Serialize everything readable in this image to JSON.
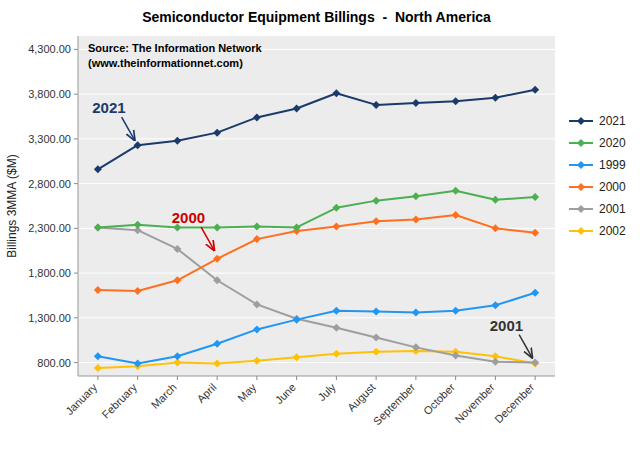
{
  "chart_data": {
    "type": "line",
    "title": "Semiconductor Equipment Billings  -  North America",
    "y_label": "Billings 3MMA ($M)",
    "categories": [
      "January",
      "February",
      "March",
      "April",
      "May",
      "June",
      "July",
      "August",
      "September",
      "October",
      "November",
      "December"
    ],
    "series": [
      {
        "name": "2021",
        "color": "#1a3a6b",
        "marker": "diamond",
        "values": [
          2960,
          3230,
          3280,
          3370,
          3540,
          3640,
          3810,
          3680,
          3700,
          3720,
          3760,
          3850
        ]
      },
      {
        "name": "2020",
        "color": "#4caf50",
        "marker": "diamond",
        "values": [
          2310,
          2340,
          2310,
          2310,
          2320,
          2310,
          2530,
          2610,
          2660,
          2720,
          2620,
          2650
        ]
      },
      {
        "name": "1999",
        "color": "#2196f3",
        "marker": "diamond",
        "values": [
          870,
          790,
          870,
          1010,
          1170,
          1280,
          1380,
          1370,
          1360,
          1380,
          1440,
          1580
        ]
      },
      {
        "name": "2000",
        "color": "#ff6f20",
        "marker": "diamond",
        "values": [
          1610,
          1600,
          1720,
          1960,
          2180,
          2270,
          2320,
          2380,
          2400,
          2450,
          2300,
          2250
        ]
      },
      {
        "name": "2001",
        "color": "#9e9e9e",
        "marker": "diamond",
        "values": [
          2310,
          2280,
          2070,
          1720,
          1450,
          1290,
          1190,
          1080,
          970,
          880,
          810,
          800
        ]
      },
      {
        "name": "2002",
        "color": "#ffc107",
        "marker": "diamond",
        "values": [
          740,
          760,
          800,
          790,
          820,
          860,
          900,
          920,
          930,
          920,
          870,
          790
        ]
      }
    ],
    "ylim": [
      650,
      4450
    ],
    "yticks": [
      {
        "value": 800,
        "label": "800.00"
      },
      {
        "value": 1300,
        "label": "1,300.00"
      },
      {
        "value": 1800,
        "label": "1,800.00"
      },
      {
        "value": 2300,
        "label": "2,300.00"
      },
      {
        "value": 2800,
        "label": "2,800.00"
      },
      {
        "value": 3300,
        "label": "3,300.00"
      },
      {
        "value": 3800,
        "label": "3,800.00"
      },
      {
        "value": 4300,
        "label": "4,300.00"
      }
    ],
    "grid": true,
    "legend": "right",
    "annotations": [
      {
        "text": "Source: The Information Network",
        "color": "#000000"
      },
      {
        "text": "(www.theinformationnet.com)",
        "color": "#000000"
      },
      {
        "text": "2021",
        "x": "February",
        "y": 3230,
        "color": "#1a3a6b"
      },
      {
        "text": "2000",
        "x": "April",
        "y": 2000,
        "color": "#cc0000"
      },
      {
        "text": "2001",
        "x": "December",
        "y": 800,
        "color": "#333333"
      }
    ]
  }
}
